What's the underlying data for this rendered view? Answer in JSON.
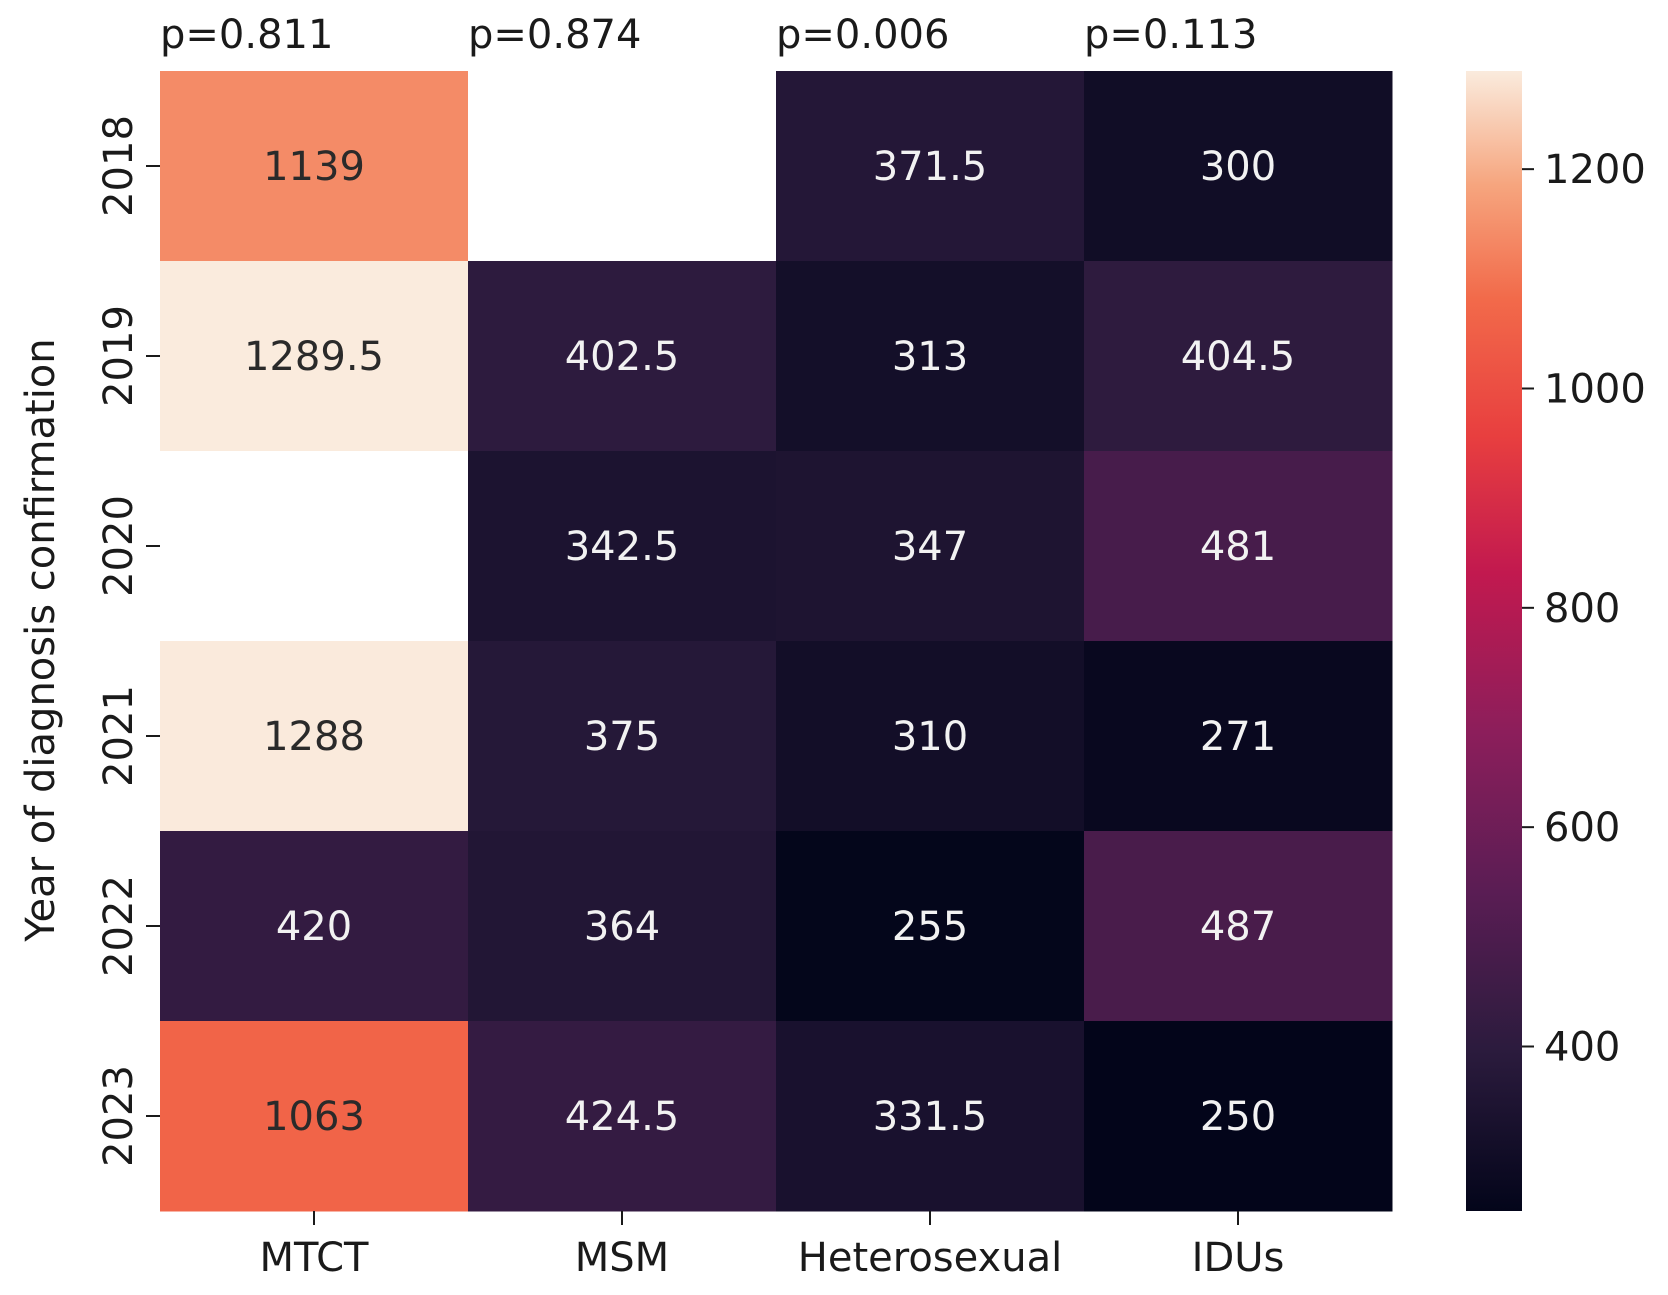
{
  "chart_data": {
    "type": "heatmap",
    "x_categories": [
      "MTCT",
      "MSM",
      "Heterosexual",
      "IDUs"
    ],
    "y_categories": [
      "2018",
      "2019",
      "2020",
      "2021",
      "2022",
      "2023"
    ],
    "values": [
      [
        1139,
        null,
        371.5,
        300
      ],
      [
        1289.5,
        402.5,
        313,
        404.5
      ],
      [
        null,
        342.5,
        347,
        481
      ],
      [
        1288,
        375,
        310,
        271
      ],
      [
        420,
        364,
        255,
        487
      ],
      [
        1063,
        424.5,
        331.5,
        250
      ]
    ],
    "cell_labels": [
      [
        "1139",
        "",
        "371.5",
        "300"
      ],
      [
        "1289.5",
        "402.5",
        "313",
        "404.5"
      ],
      [
        "",
        "342.5",
        "347",
        "481"
      ],
      [
        "1288",
        "375",
        "310",
        "271"
      ],
      [
        "420",
        "364",
        "255",
        "487"
      ],
      [
        "1063",
        "424.5",
        "331.5",
        "250"
      ]
    ],
    "column_annotations": [
      "p=0.811",
      "p=0.874",
      "p=0.006",
      "p=0.113"
    ],
    "ylabel": "Year of diagnosis confirmation",
    "xlabel": "",
    "title": "",
    "colormap": "rocket",
    "colorbar": {
      "range": [
        250,
        1289.5
      ],
      "ticks": [
        400,
        600,
        800,
        1000,
        1200
      ],
      "tick_labels": [
        "400",
        "600",
        "800",
        "1000",
        "1200"
      ]
    },
    "missing_color": "#ffffff"
  }
}
